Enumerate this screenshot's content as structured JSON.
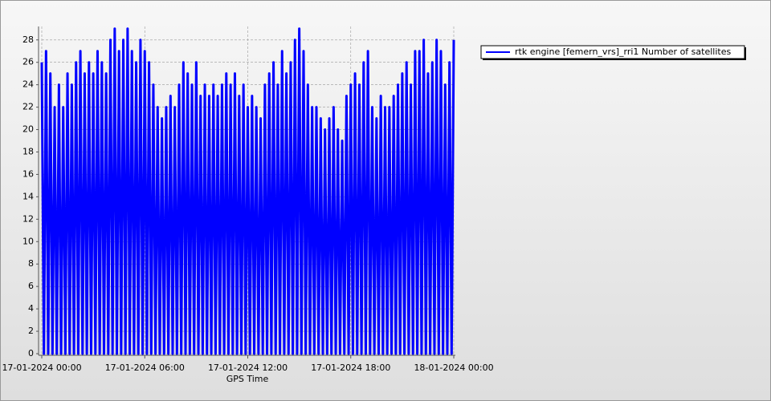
{
  "chart_data": {
    "type": "line",
    "x_label": "GPS Time",
    "x": [
      0,
      0.125,
      0.25,
      0.375,
      0.5,
      0.625,
      0.75,
      0.875,
      1,
      1.125,
      1.25,
      1.375,
      1.5,
      1.625,
      1.75,
      1.875,
      2,
      2.125,
      2.25,
      2.375,
      2.5,
      2.625,
      2.75,
      2.875,
      3,
      3.125,
      3.25,
      3.375,
      3.5,
      3.625,
      3.75,
      3.875,
      4,
      4.125,
      4.25,
      4.375,
      4.5,
      4.625,
      4.75,
      4.875,
      5,
      5.125,
      5.25,
      5.375,
      5.5,
      5.625,
      5.75,
      5.875,
      6,
      6.125,
      6.25,
      6.375,
      6.5,
      6.625,
      6.75,
      6.875,
      7,
      7.125,
      7.25,
      7.375,
      7.5,
      7.625,
      7.75,
      7.875,
      8,
      8.125,
      8.25,
      8.375,
      8.5,
      8.625,
      8.75,
      8.875,
      9,
      9.125,
      9.25,
      9.375,
      9.5,
      9.625,
      9.75,
      9.875,
      10,
      10.125,
      10.25,
      10.375,
      10.5,
      10.625,
      10.75,
      10.875,
      11,
      11.125,
      11.25,
      11.375,
      11.5,
      11.625,
      11.75,
      11.875,
      12,
      12.125,
      12.25,
      12.375,
      12.5,
      12.625,
      12.75,
      12.875,
      13,
      13.125,
      13.25,
      13.375,
      13.5,
      13.625,
      13.75,
      13.875,
      14,
      14.125,
      14.25,
      14.375,
      14.5,
      14.625,
      14.75,
      14.875,
      15,
      15.125,
      15.25,
      15.375,
      15.5,
      15.625,
      15.75,
      15.875,
      16,
      16.125,
      16.25,
      16.375,
      16.5,
      16.625,
      16.75,
      16.875,
      17,
      17.125,
      17.25,
      17.375,
      17.5,
      17.625,
      17.75,
      17.875,
      18,
      18.125,
      18.25,
      18.375,
      18.5,
      18.625,
      18.75,
      18.875,
      19,
      19.125,
      19.25,
      19.375,
      19.5,
      19.625,
      19.75,
      19.875,
      20,
      20.125,
      20.25,
      20.375,
      20.5,
      20.625,
      20.75,
      20.875,
      21,
      21.125,
      21.25,
      21.375,
      21.5,
      21.625,
      21.75,
      21.875,
      22,
      22.125,
      22.25,
      22.375,
      22.5,
      22.625,
      22.75,
      22.875,
      23,
      23.125,
      23.25,
      23.375,
      23.5,
      23.625,
      23.75,
      23.875,
      24
    ],
    "series": [
      {
        "name": "rtk engine [femern_vrs]_rri1 Number of satellites",
        "color": "#0000ff",
        "values": [
          26,
          0,
          27,
          0,
          25,
          0,
          22,
          0,
          24,
          0,
          22,
          0,
          25,
          0,
          24,
          0,
          26,
          0,
          27,
          0,
          25,
          0,
          26,
          0,
          25,
          0,
          27,
          0,
          26,
          0,
          25,
          0,
          28,
          0,
          29,
          0,
          27,
          0,
          28,
          0,
          29,
          0,
          27,
          0,
          26,
          0,
          28,
          0,
          27,
          0,
          26,
          0,
          24,
          0,
          22,
          0,
          21,
          0,
          22,
          0,
          23,
          0,
          22,
          0,
          24,
          0,
          26,
          0,
          25,
          0,
          24,
          0,
          26,
          0,
          23,
          0,
          24,
          0,
          23,
          0,
          24,
          0,
          23,
          0,
          24,
          0,
          25,
          0,
          24,
          0,
          25,
          0,
          23,
          0,
          24,
          0,
          22,
          0,
          23,
          0,
          22,
          0,
          21,
          0,
          24,
          0,
          25,
          0,
          26,
          0,
          24,
          0,
          27,
          0,
          25,
          0,
          26,
          0,
          28,
          0,
          29,
          0,
          27,
          0,
          24,
          0,
          22,
          0,
          22,
          0,
          21,
          0,
          20,
          0,
          21,
          0,
          22,
          0,
          20,
          0,
          19,
          0,
          23,
          0,
          24,
          0,
          25,
          0,
          24,
          0,
          26,
          0,
          27,
          0,
          22,
          0,
          21,
          0,
          23,
          0,
          22,
          0,
          22,
          0,
          23,
          0,
          24,
          0,
          25,
          0,
          26,
          0,
          24,
          0,
          27,
          0,
          27,
          0,
          28,
          0,
          25,
          0,
          26,
          0,
          28,
          0,
          27,
          0,
          24,
          0,
          26,
          0,
          28
        ]
      }
    ],
    "xlim": [
      0,
      24
    ],
    "xticks": [
      {
        "value": 0,
        "label": "17-01-2024 00:00"
      },
      {
        "value": 6,
        "label": "17-01-2024 06:00"
      },
      {
        "value": 12,
        "label": "17-01-2024 12:00"
      },
      {
        "value": 18,
        "label": "17-01-2024 18:00"
      },
      {
        "value": 24,
        "label": "18-01-2024 00:00"
      }
    ],
    "ylim": [
      0,
      29.2
    ],
    "yticks": [
      0,
      2,
      4,
      6,
      8,
      10,
      12,
      14,
      16,
      18,
      20,
      22,
      24,
      26,
      28
    ],
    "grid": true,
    "legend": "top-right"
  }
}
